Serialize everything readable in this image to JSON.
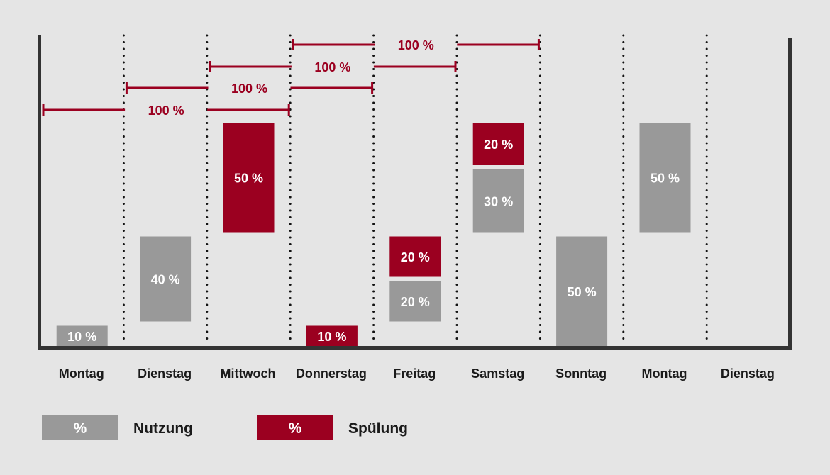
{
  "colors": {
    "nutzung": "#999999",
    "spuelung": "#9b0020",
    "axis": "#333333",
    "background": "#e5e5e5"
  },
  "days": [
    "Montag",
    "Dienstag",
    "Mittwoch",
    "Donnerstag",
    "Freitag",
    "Samstag",
    "Sonntag",
    "Montag",
    "Dienstag"
  ],
  "segments": [
    {
      "day": 0,
      "type": "nutzung",
      "from": 0,
      "to": 10,
      "label": "10 %"
    },
    {
      "day": 1,
      "type": "nutzung",
      "from": 10,
      "to": 50,
      "label": "40 %"
    },
    {
      "day": 2,
      "type": "spuelung",
      "from": 50,
      "to": 100,
      "label": "50 %"
    },
    {
      "day": 3,
      "type": "spuelung",
      "from": 0,
      "to": 10,
      "label": "10 %"
    },
    {
      "day": 4,
      "type": "nutzung",
      "from": 10,
      "to": 30,
      "label": "20 %"
    },
    {
      "day": 4,
      "type": "spuelung",
      "from": 30,
      "to": 50,
      "label": "20 %"
    },
    {
      "day": 5,
      "type": "nutzung",
      "from": 50,
      "to": 80,
      "label": "30 %"
    },
    {
      "day": 5,
      "type": "spuelung",
      "from": 80,
      "to": 100,
      "label": "20 %"
    },
    {
      "day": 6,
      "type": "nutzung",
      "from": 0,
      "to": 50,
      "label": "50 %"
    },
    {
      "day": 7,
      "type": "nutzung",
      "from": 50,
      "to": 100,
      "label": "50 %"
    }
  ],
  "spans": [
    {
      "start_day": 0,
      "end_day": 2,
      "label": "100 %"
    },
    {
      "start_day": 1,
      "end_day": 3,
      "label": "100 %"
    },
    {
      "start_day": 2,
      "end_day": 4,
      "label": "100 %"
    },
    {
      "start_day": 3,
      "end_day": 5,
      "label": "100 %"
    }
  ],
  "legend": [
    {
      "type": "nutzung",
      "symbol": "%",
      "label": "Nutzung"
    },
    {
      "type": "spuelung",
      "symbol": "%",
      "label": "Spülung"
    }
  ]
}
